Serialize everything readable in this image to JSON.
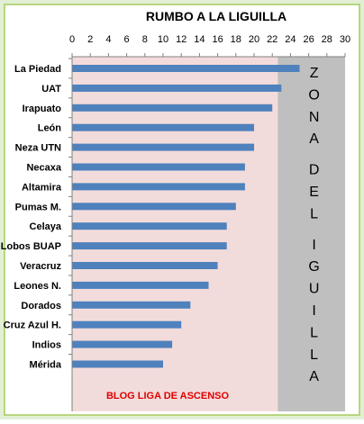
{
  "chart_data": {
    "type": "bar",
    "orientation": "horizontal",
    "title": "RUMBO A LA LIGUILLA",
    "xlim": [
      0,
      30
    ],
    "x_ticks": [
      "0",
      "2",
      "4",
      "6",
      "8",
      "10",
      "12",
      "14",
      "16",
      "18",
      "20",
      "22",
      "24",
      "26",
      "28",
      "30"
    ],
    "x_axis_position": "top",
    "categories": [
      "La Piedad",
      "UAT",
      "Irapuato",
      "León",
      "Neza UTN",
      "Necaxa",
      "Altamira",
      "Pumas M.",
      "Celaya",
      "Lobos BUAP",
      "Veracruz",
      "Leones N.",
      "Dorados",
      "Cruz Azul H.",
      "Indios",
      "Mérida"
    ],
    "values": [
      25,
      23,
      22,
      20,
      20,
      19,
      19,
      18,
      17,
      17,
      16,
      15,
      13,
      12,
      11,
      10
    ],
    "grid": false,
    "zone": {
      "label_letters": [
        "Z",
        "O",
        "N",
        "A",
        "D",
        "E",
        "L",
        "I",
        "G",
        "U",
        "I",
        "L",
        "L",
        "A"
      ],
      "x_start": 22.6
    },
    "annotation": "BLOG LIGA DE ASCENSO",
    "colors": {
      "bar": "#4F81BD",
      "plot_background": "#F2DCDB",
      "zone_background": "#BFBFBF",
      "annotation": "#E00000",
      "frame": "#A6CB5D",
      "page": "#E2EFD4"
    }
  }
}
